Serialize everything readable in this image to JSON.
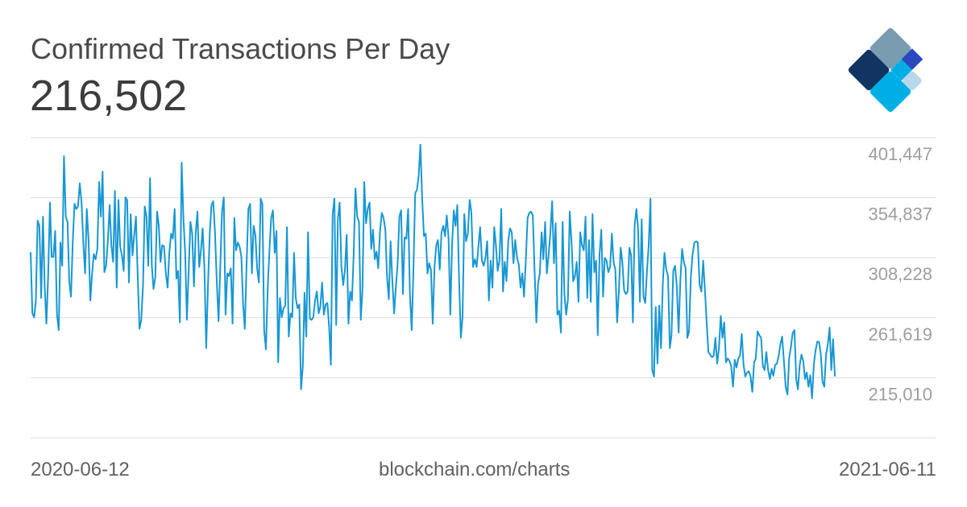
{
  "header": {
    "title": "Confirmed Transactions Per Day",
    "latest_value": "216,502"
  },
  "footer": {
    "start_date": "2020-06-12",
    "source": "blockchain.com/charts",
    "end_date": "2021-06-11"
  },
  "logo": {
    "icon": "blockchain-logo-icon",
    "colors": [
      "#7a9cb0",
      "#123463",
      "#2a49bf",
      "#00aee6",
      "#b7d8ea"
    ]
  },
  "chart_data": {
    "type": "line",
    "title": "Confirmed Transactions Per Day",
    "xlabel": "",
    "ylabel": "",
    "x_start": "2020-06-12",
    "x_end": "2021-06-11",
    "y_ticks": [
      215010,
      261619,
      308228,
      354837,
      401447
    ],
    "y_tick_labels": [
      "215,010",
      "261,619",
      "308,228",
      "354,837",
      "401,447"
    ],
    "ylim": [
      168400,
      401447
    ],
    "grid": true,
    "line_color": "#1897d4",
    "series": [
      {
        "values": [
          312000,
          265000,
          262000,
          275000,
          337000,
          333000,
          277000,
          340000,
          287000,
          257000,
          295000,
          351000,
          309000,
          309000,
          329000,
          264000,
          252000,
          320000,
          302000,
          387000,
          340000,
          336000,
          290000,
          278000,
          321000,
          350000,
          346000,
          348000,
          366000,
          351000,
          320000,
          296000,
          346000,
          322000,
          275000,
          296000,
          311000,
          307000,
          315000,
          367000,
          340000,
          375000,
          297000,
          302000,
          322000,
          349000,
          318000,
          305000,
          360000,
          285000,
          353000,
          317000,
          310000,
          298000,
          355000,
          353000,
          289000,
          342000,
          310000,
          326000,
          340000,
          294000,
          253000,
          260000,
          287000,
          348000,
          340000,
          302000,
          370000,
          302000,
          284000,
          293000,
          344000,
          333000,
          305000,
          318000,
          317000,
          296000,
          285000,
          312000,
          327000,
          323000,
          346000,
          292000,
          298000,
          258000,
          382000,
          339000,
          312000,
          260000,
          297000,
          336000,
          327000,
          286000,
          327000,
          344000,
          301000,
          314000,
          331000,
          300000,
          238000,
          287000,
          327000,
          349000,
          352000,
          328000,
          290000,
          259000,
          300000,
          344000,
          355000,
          264000,
          296000,
          294000,
          300000,
          257000,
          339000,
          314000,
          320000,
          317000,
          309000,
          272000,
          253000,
          303000,
          346000,
          350000,
          296000,
          333000,
          326000,
          300000,
          289000,
          354000,
          350000,
          252000,
          237000,
          284000,
          313000,
          339000,
          345000,
          312000,
          329000,
          227000,
          277000,
          262000,
          269000,
          271000,
          332000,
          247000,
          265000,
          262000,
          312000,
          277000,
          269000,
          272000,
          206000,
          224000,
          281000,
          247000,
          328000,
          261000,
          260000,
          262000,
          275000,
          282000,
          265000,
          270000,
          289000,
          264000,
          272000,
          273000,
          255000,
          225000,
          342000,
          354000,
          256000,
          338000,
          351000,
          301000,
          287000,
          298000,
          326000,
          257000,
          282000,
          275000,
          311000,
          362000,
          340000,
          336000,
          260000,
          283000,
          367000,
          335000,
          346000,
          351000,
          315000,
          330000,
          307000,
          313000,
          300000,
          329000,
          343000,
          339000,
          330000,
          293000,
          276000,
          321000,
          290000,
          265000,
          285000,
          303000,
          340000,
          345000,
          280000,
          324000,
          323000,
          346000,
          280000,
          252000,
          298000,
          358000,
          361000,
          372000,
          396000,
          354000,
          325000,
          327000,
          296000,
          304000,
          299000,
          257000,
          301000,
          318000,
          322000,
          299000,
          328000,
          333000,
          325000,
          341000,
          324000,
          264000,
          318000,
          345000,
          333000,
          349000,
          292000,
          246000,
          262000,
          342000,
          321000,
          327000,
          353000,
          344000,
          301000,
          307000,
          301000,
          317000,
          332000,
          306000,
          302000,
          308000,
          321000,
          275000,
          306000,
          285000,
          332000,
          318000,
          298000,
          306000,
          346000,
          282000,
          305000,
          290000,
          321000,
          331000,
          328000,
          304000,
          322000,
          308000,
          303000,
          285000,
          296000,
          278000,
          306000,
          339000,
          343000,
          344000,
          341000,
          298000,
          258000,
          288000,
          296000,
          328000,
          307000,
          336000,
          296000,
          310000,
          328000,
          352000,
          304000,
          335000,
          264000,
          267000,
          250000,
          336000,
          280000,
          264000,
          276000,
          344000,
          322000,
          290000,
          294000,
          305000,
          274000,
          328000,
          318000,
          314000,
          340000,
          277000,
          322000,
          274000,
          342000,
          297000,
          306000,
          248000,
          311000,
          330000,
          278000,
          308000,
          306000,
          297000,
          301000,
          327000,
          305000,
          299000,
          258000,
          282000,
          316000,
          305000,
          283000,
          280000,
          282000,
          316000,
          310000,
          258000,
          334000,
          346000,
          330000,
          274000,
          338000,
          278000,
          273000,
          297000,
          318000,
          354000,
          221000,
          216000,
          270000,
          226000,
          271000,
          238000,
          288000,
          312000,
          299000,
          294000,
          238000,
          248000,
          298000,
          302000,
          286000,
          250000,
          289000,
          315000,
          305000,
          300000,
          246000,
          251000,
          293000,
          311000,
          320000,
          321000,
          320000,
          287000,
          282000,
          306000,
          283000,
          258000,
          235000,
          233000,
          231000,
          232000,
          246000,
          226000,
          238000,
          263000,
          246000,
          258000,
          227000,
          230000,
          228000,
          224000,
          208000,
          229000,
          223000,
          230000,
          232000,
          249000,
          225000,
          216000,
          219000,
          220000,
          216000,
          204000,
          227000,
          230000,
          251000,
          248000,
          246000,
          224000,
          221000,
          235000,
          221000,
          214000,
          222000,
          216502
        ],
        "recent_values": [
          225000,
          226000,
          232000,
          241000,
          247000,
          228000,
          208000,
          202000,
          230000,
          239000,
          250000,
          252000,
          214000,
          206000,
          225000,
          233000,
          228000,
          214000,
          219000,
          208000,
          217000,
          199000,
          225000,
          236000,
          243000,
          243000,
          233000,
          212000,
          208000,
          233000,
          241000,
          254000,
          221000,
          245000,
          216502
        ]
      }
    ]
  }
}
